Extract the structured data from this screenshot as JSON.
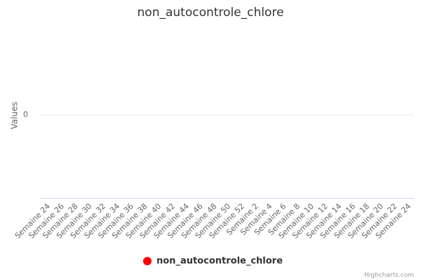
{
  "chart_data": {
    "type": "line",
    "title": "non_autocontrole_chlore",
    "y_axis_label": "Values",
    "categories": [
      "Semaine 24",
      "Semaine 26",
      "Semaine 28",
      "Semaine 30",
      "Semaine 32",
      "Semaine 34",
      "Semaine 36",
      "Semaine 38",
      "Semaine 40",
      "Semaine 42",
      "Semaine 44",
      "Semaine 46",
      "Semaine 48",
      "Semaine 50",
      "Semaine 52",
      "Semaine 2",
      "Semaine 4",
      "Semaine 6",
      "Semaine 8",
      "Semaine 10",
      "Semaine 12",
      "Semaine 14",
      "Semaine 16",
      "Semaine 18",
      "Semaine 20",
      "Semaine 22",
      "Semaine 24"
    ],
    "series": [
      {
        "name": "non_autocontrole_chlore",
        "color": "#ff0000",
        "values": [
          null,
          null,
          null,
          null,
          null,
          null,
          null,
          null,
          null,
          null,
          null,
          null,
          null,
          null,
          null,
          null,
          null,
          null,
          null,
          null,
          null,
          null,
          null,
          null,
          null,
          null,
          null
        ]
      }
    ],
    "ylim": [
      -1,
      1
    ],
    "yticks": [
      0
    ],
    "grid": true,
    "legend": "bottom",
    "credits": "Highcharts.com"
  }
}
